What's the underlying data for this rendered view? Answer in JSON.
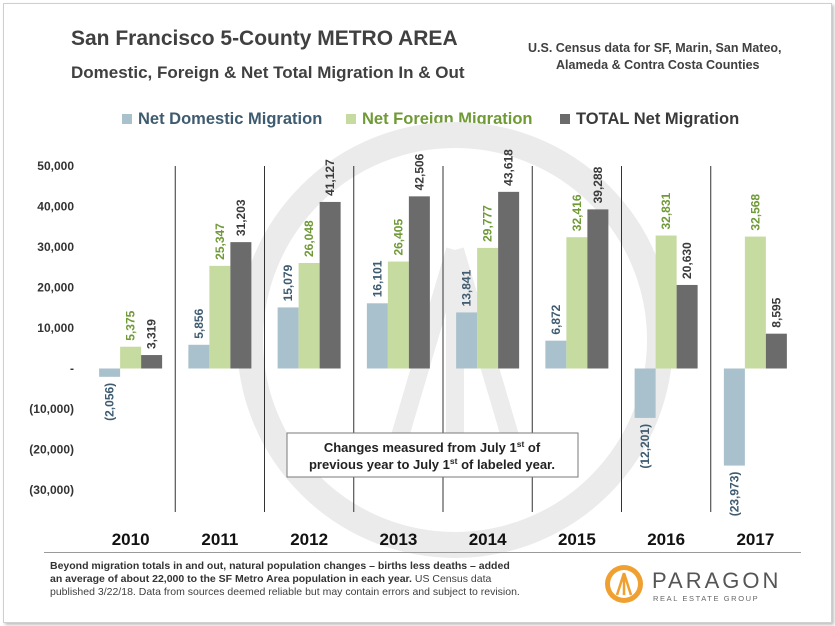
{
  "header": {
    "title": "San Francisco 5-County METRO AREA",
    "subtitle": "Domestic, Foreign & Net Total Migration In & Out",
    "source_line1": "U.S. Census data for SF, Marin, San Mateo,",
    "source_line2": "Alameda & Contra Costa Counties"
  },
  "colors": {
    "domestic": "#a9c1cc",
    "foreign": "#c5dba0",
    "total": "#6b6b6b",
    "domestic_label": "#3e5b70",
    "foreign_label": "#6f9a36",
    "total_label": "#3a3a3a"
  },
  "chart_data": {
    "type": "bar",
    "categories": [
      "2010",
      "2011",
      "2012",
      "2013",
      "2014",
      "2015",
      "2016",
      "2017"
    ],
    "series": [
      {
        "name": "Net Domestic Migration",
        "values": [
          -2056,
          5856,
          15079,
          16101,
          13841,
          6872,
          -12201,
          -23973
        ]
      },
      {
        "name": "Net Foreign Migration",
        "values": [
          5375,
          25347,
          26048,
          26405,
          29777,
          32416,
          32831,
          32568
        ]
      },
      {
        "name": "TOTAL Net Migration",
        "values": [
          3319,
          31203,
          41127,
          42506,
          43618,
          39288,
          20630,
          8595
        ]
      }
    ],
    "data_labels": [
      [
        "(2,056)",
        "5,856",
        "15,079",
        "16,101",
        "13,841",
        "6,872",
        "(12,201)",
        "(23,973)"
      ],
      [
        "5,375",
        "25,347",
        "26,048",
        "26,405",
        "29,777",
        "32,416",
        "32,831",
        "32,568"
      ],
      [
        "3,319",
        "31,203",
        "41,127",
        "42,506",
        "43,618",
        "39,288",
        "20,630",
        "8,595"
      ]
    ],
    "ylim": [
      -30000,
      50000
    ],
    "yticks": [
      50000,
      40000,
      30000,
      20000,
      10000,
      0,
      -10000,
      -20000,
      -30000
    ],
    "ytick_labels": [
      "50,000",
      "40,000",
      "30,000",
      "20,000",
      "10,000",
      "-",
      "(10,000)",
      "(20,000)",
      "(30,000)"
    ],
    "legend_position": "top",
    "annotation": {
      "line1_a": "Changes measured from July 1",
      "line1_sup": "st",
      "line1_b": " of",
      "line2_a": "previous year to July 1",
      "line2_sup": "st",
      "line2_b": " of labeled year."
    }
  },
  "footer": {
    "note_bold": "Beyond migration totals in and out, natural population changes – births less deaths – added an average of about 22,000 to the SF Metro Area population in each year.",
    "note_rest": " US Census data published 3/22/18. Data from sources deemed reliable but may contain errors and subject to revision.",
    "brand_name": "PARAGON",
    "brand_tagline": "REAL ESTATE GROUP"
  }
}
